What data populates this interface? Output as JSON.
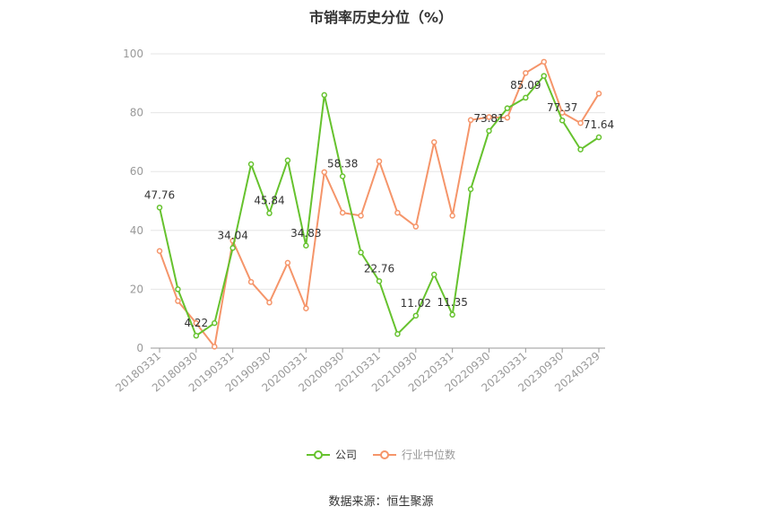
{
  "chart_data": {
    "type": "line",
    "title": "市销率历史分位（%）",
    "xlabel": "",
    "ylabel": "",
    "ylim": [
      0,
      100
    ],
    "yticks": [
      0,
      20,
      40,
      60,
      80,
      100
    ],
    "grid": true,
    "legend_position": "bottom",
    "x": [
      "20180331",
      "20180630",
      "20180930",
      "20181231",
      "20190331",
      "20190630",
      "20190930",
      "20191231",
      "20200331",
      "20200630",
      "20200930",
      "20201231",
      "20210331",
      "20210630",
      "20210930",
      "20211231",
      "20220331",
      "20220630",
      "20220930",
      "20221231",
      "20230331",
      "20230630",
      "20230930",
      "20231231",
      "20240329"
    ],
    "x_tick_labels": [
      "20180331",
      "20180930",
      "20190331",
      "20190930",
      "20200331",
      "20200930",
      "20210331",
      "20210930",
      "20220331",
      "20220930",
      "20230331",
      "20230930",
      "20240329"
    ],
    "series": [
      {
        "name": "公司",
        "color": "#66c22e",
        "values": [
          47.76,
          20.0,
          4.22,
          8.5,
          34.04,
          62.5,
          45.84,
          63.8,
          34.83,
          86.0,
          58.38,
          32.5,
          22.76,
          4.8,
          11.02,
          25.0,
          11.35,
          54.0,
          73.81,
          81.5,
          85.09,
          92.5,
          77.37,
          67.5,
          71.64
        ]
      },
      {
        "name": "行业中位数",
        "color": "#f5956a",
        "values": [
          33.0,
          16.0,
          8.5,
          0.5,
          36.5,
          22.5,
          15.5,
          29.0,
          13.5,
          59.8,
          46.0,
          45.0,
          63.5,
          46.0,
          41.3,
          70.0,
          45.0,
          77.5,
          78.5,
          78.3,
          93.5,
          97.3,
          80.0,
          76.5,
          86.5
        ]
      }
    ],
    "data_labels": [
      {
        "series": 0,
        "index": 0,
        "text": "47.76"
      },
      {
        "series": 0,
        "index": 2,
        "text": "4.22"
      },
      {
        "series": 0,
        "index": 4,
        "text": "34.04"
      },
      {
        "series": 0,
        "index": 6,
        "text": "45.84"
      },
      {
        "series": 0,
        "index": 8,
        "text": "34.83"
      },
      {
        "series": 0,
        "index": 10,
        "text": "58.38"
      },
      {
        "series": 0,
        "index": 12,
        "text": "22.76"
      },
      {
        "series": 0,
        "index": 14,
        "text": "11.02"
      },
      {
        "series": 0,
        "index": 16,
        "text": "11.35"
      },
      {
        "series": 0,
        "index": 18,
        "text": "73.81"
      },
      {
        "series": 0,
        "index": 20,
        "text": "85.09"
      },
      {
        "series": 0,
        "index": 22,
        "text": "77.37"
      },
      {
        "series": 0,
        "index": 24,
        "text": "71.64"
      }
    ]
  },
  "legend": {
    "items": [
      {
        "label": "公司",
        "color": "#66c22e"
      },
      {
        "label": "行业中位数",
        "color": "#f5956a"
      }
    ]
  },
  "source": "数据来源：恒生聚源"
}
